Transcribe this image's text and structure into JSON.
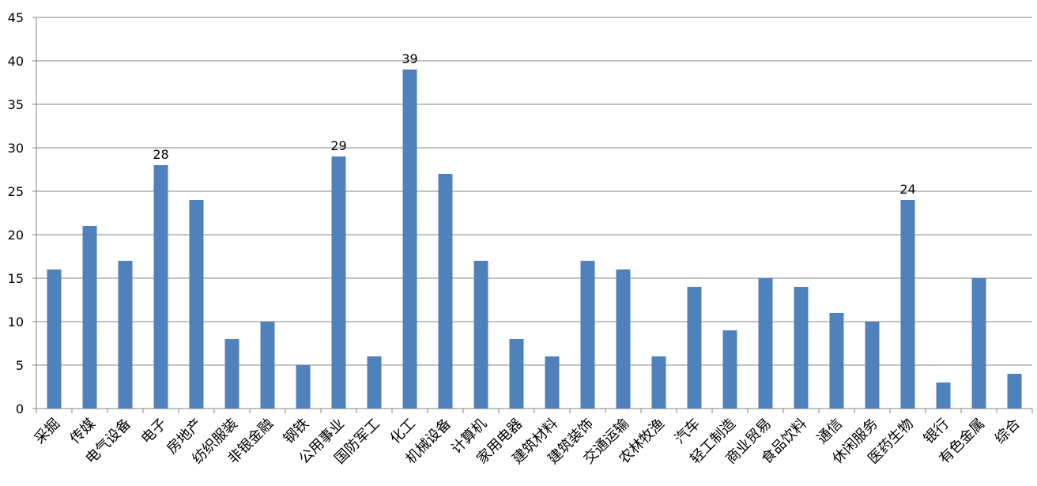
{
  "chart_data": {
    "type": "bar",
    "categories": [
      "采掘",
      "传媒",
      "电气设备",
      "电子",
      "房地产",
      "纺织服装",
      "非银金融",
      "钢铁",
      "公用事业",
      "国防军工",
      "化工",
      "机械设备",
      "计算机",
      "家用电器",
      "建筑材料",
      "建筑装饰",
      "交通运输",
      "农林牧渔",
      "汽车",
      "轻工制造",
      "商业贸易",
      "食品饮料",
      "通信",
      "休闲服务",
      "医药生物",
      "银行",
      "有色金属",
      "综合"
    ],
    "values": [
      16,
      21,
      17,
      28,
      24,
      8,
      10,
      5,
      29,
      6,
      39,
      27,
      17,
      8,
      6,
      17,
      16,
      6,
      14,
      9,
      15,
      14,
      11,
      10,
      24,
      3,
      15,
      4
    ],
    "value_labels": [
      null,
      null,
      null,
      "28",
      null,
      null,
      null,
      null,
      "29",
      null,
      "39",
      null,
      null,
      null,
      null,
      null,
      null,
      null,
      null,
      null,
      null,
      null,
      null,
      null,
      "24",
      null,
      null,
      null
    ],
    "color": "#4f81bd",
    "ylim": [
      0,
      45
    ],
    "yticks": [
      0,
      5,
      10,
      15,
      20,
      25,
      30,
      35,
      40,
      45
    ],
    "grid": true
  }
}
